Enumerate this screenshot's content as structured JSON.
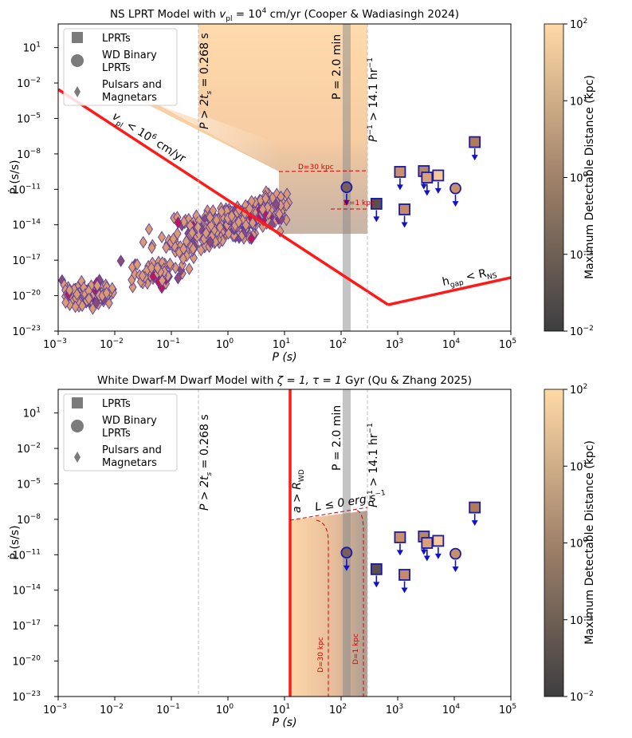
{
  "chart_data": [
    {
      "type": "scatter",
      "title": "NS LPRT Model with v_pl = 10^4 cm/yr (Cooper & Wadiasingh 2024)",
      "title_parts": [
        "NS LPRT Model with ",
        "v",
        "pl",
        " = 10",
        "4",
        " cm/yr (Cooper & Wadiasingh 2024)"
      ],
      "xlabel": "P (s)",
      "ylabel": "Ṗ (s/s)",
      "xscale": "log",
      "yscale": "log",
      "xlim": [
        0.001,
        100000
      ],
      "ylim": [
        1e-23,
        1000
      ],
      "legend": [
        "LPRTs",
        "WD Binary LPRTs",
        "Pulsars and Magnetars"
      ],
      "legend_placement": "top-left",
      "vlines": [
        {
          "x": 0.268,
          "label": "P > 2t_s = 0.268 s"
        },
        {
          "x": 120,
          "label": "P = 2.0 min"
        },
        {
          "x": 255,
          "label": "P^-1 > 14.1 hr^-1"
        }
      ],
      "annotations": [
        "v_pl < 10^6 cm/yr",
        "h_gap < R_NS",
        "D=30 kpc",
        "D=1 kpc"
      ],
      "lprts": [
        {
          "P": 421,
          "Pdot": 6e-13,
          "upper_limit": true
        },
        {
          "P": 1100,
          "Pdot": 3e-10,
          "upper_limit": true
        },
        {
          "P": 1320,
          "Pdot": 2e-13,
          "upper_limit": true
        },
        {
          "P": 2900,
          "Pdot": 3.5e-10,
          "upper_limit": true
        },
        {
          "P": 3300,
          "Pdot": 1e-10,
          "upper_limit": true
        },
        {
          "P": 5200,
          "Pdot": 1.5e-10,
          "upper_limit": true
        },
        {
          "P": 23000,
          "Pdot": 1e-07,
          "upper_limit": true
        }
      ],
      "wd_binaries": [
        {
          "P": 125,
          "Pdot": 1.5e-11,
          "upper_limit": true
        },
        {
          "P": 10500,
          "Pdot": 1.2e-11,
          "upper_limit": true
        }
      ],
      "pulsar_clusters": [
        {
          "P": 0.004,
          "Pdot": 1e-20
        },
        {
          "P": 0.04,
          "Pdot": 5e-19
        },
        {
          "P": 0.5,
          "Pdot": 3e-15
        },
        {
          "P": 3,
          "Pdot": 1e-13
        },
        {
          "P": 8,
          "Pdot": 5e-12
        }
      ]
    },
    {
      "type": "scatter",
      "title": "White Dwarf-M Dwarf Model with ζ = 1, τ = 1 Gyr (Qu & Zhang 2025)",
      "title_parts": [
        "White Dwarf-M Dwarf Model with ",
        "ζ = 1, τ = 1",
        " Gyr (Qu & Zhang 2025)"
      ],
      "xlabel": "P (s)",
      "ylabel": "Ṗ (s/s)",
      "xscale": "log",
      "yscale": "log",
      "xlim": [
        0.001,
        100000
      ],
      "ylim": [
        1e-23,
        1000
      ],
      "legend": [
        "LPRTs",
        "WD Binary LPRTs",
        "Pulsars and Magnetars"
      ],
      "legend_placement": "top-left",
      "vlines": [
        {
          "x": 0.268,
          "label": "P > 2t_s = 0.268 s"
        },
        {
          "x": 120,
          "label": "P = 2.0 min"
        },
        {
          "x": 255,
          "label": "P^-1 > 14.1 hr^-1"
        },
        {
          "x": 11,
          "label": "a > R_WD"
        }
      ],
      "annotations": [
        "L ≤ 0 erg s^-1",
        "D=30 kpc",
        "D=1 kpc"
      ]
    }
  ],
  "colorbar": {
    "label": "Maximum Detectable Distance (kpc)",
    "range": [
      0.01,
      100
    ],
    "ticks": [
      "10^-2",
      "10^-1",
      "10^0",
      "10^1",
      "10^2"
    ],
    "colors": [
      "#3e3e40",
      "#ffd9a6"
    ]
  },
  "text": {
    "top_title_a": "NS LPRT Model with ",
    "top_title_v": "v",
    "top_title_pl": "pl",
    "top_title_eq": " = 10",
    "top_title_exp": "4",
    "top_title_b": " cm/yr (Cooper & Wadiasingh 2024)",
    "bot_title_a": "White Dwarf-M Dwarf Model with ",
    "bot_title_b": "ζ = 1, τ = 1",
    "bot_title_c": " Gyr (Qu & Zhang 2025)",
    "xlabel": "P (s)",
    "ylabel": "Ṗ (s/s)",
    "leg_lprt": "LPRTs",
    "leg_wd1": "WD Binary",
    "leg_wd2": "LPRTs",
    "leg_ps1": "Pulsars and",
    "leg_ps2": "Magnetars",
    "ann_ts": "P > 2t",
    "ann_ts_sub": "s",
    "ann_ts_val": " = 0.268 s",
    "ann_2min": "P = 2.0 min",
    "ann_hr": "P",
    "ann_hr_sup": "−1",
    "ann_hr_val": " > 14.1 hr",
    "ann_hr_sup2": "−1",
    "ann_vpl": "v",
    "ann_vpl_sub": "pl",
    "ann_vpl_val": " < 10",
    "ann_vpl_exp": "6",
    "ann_vpl_unit": " cm/yr",
    "ann_hgap": "h",
    "ann_hgap_sub": "gap",
    "ann_hgap_val": " < R",
    "ann_hgap_sub2": "NS",
    "ann_d30": "D=30 kpc",
    "ann_d1": "D=1 kpc",
    "ann_arwd": "a > R",
    "ann_arwd_sub": "WD",
    "ann_L": "L ≤ 0 erg s",
    "ann_L_sup": "−1",
    "cbar_label": "Maximum Detectable Distance (kpc)"
  }
}
